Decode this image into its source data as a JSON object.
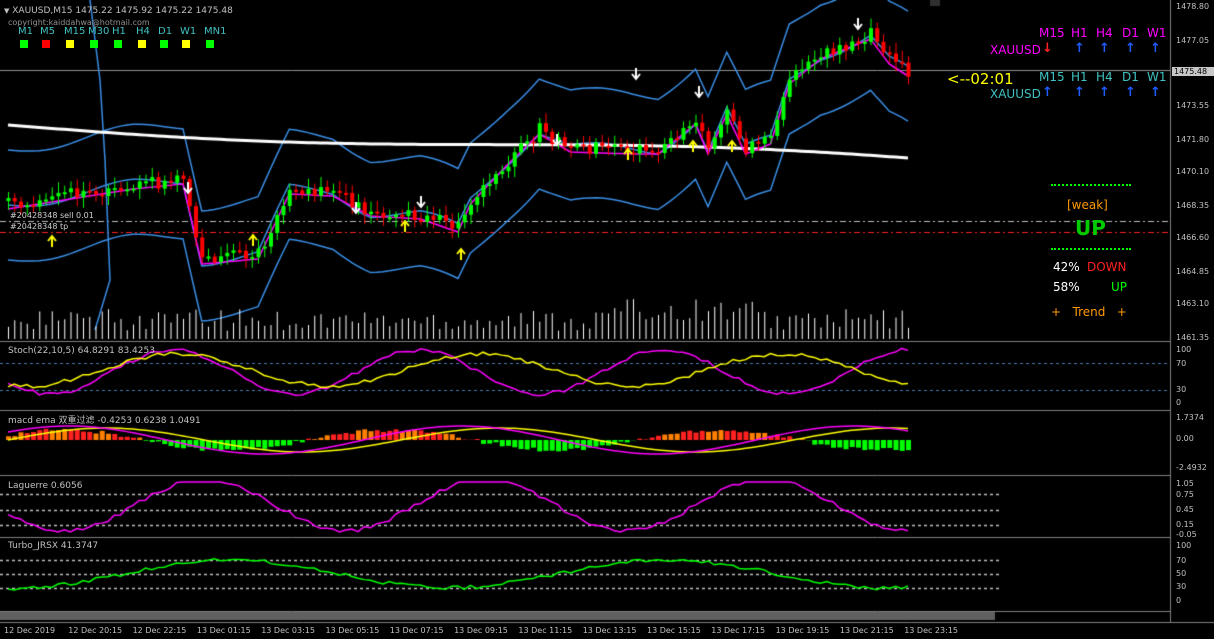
{
  "header": {
    "symbol_line": "XAUUSD,M15  1475.22 1475.92 1475.22 1475.48",
    "copyright": "copyright:kaiddahwa@hotmail.com",
    "timeframes": [
      {
        "label": "M1",
        "color": "#00ff00"
      },
      {
        "label": "M5",
        "color": "#ff0000"
      },
      {
        "label": "M15",
        "color": "#ffff00"
      },
      {
        "label": "M30",
        "color": "#00ff00"
      },
      {
        "label": "H1",
        "color": "#00ff00"
      },
      {
        "label": "H4",
        "color": "#ffff00"
      },
      {
        "label": "D1",
        "color": "#00ff00"
      },
      {
        "label": "W1",
        "color": "#ffff00"
      },
      {
        "label": "MN1",
        "color": "#00ff00"
      }
    ]
  },
  "panel": {
    "row1": {
      "symbol": "XAUUSD",
      "tfs": [
        "M15",
        "H1",
        "H4",
        "D1",
        "W1"
      ],
      "arrows": [
        "down",
        "up",
        "up",
        "up",
        "up"
      ],
      "arrow_colors": [
        "#ff2020",
        "#1e5cff",
        "#1e5cff",
        "#1e5cff",
        "#1e5cff"
      ],
      "color": "#ff00ff"
    },
    "timer": "<--02:01",
    "row2": {
      "symbol": "XAUUSD",
      "tfs": [
        "M15",
        "H1",
        "H4",
        "D1",
        "W1"
      ],
      "arrows": [
        "up",
        "up",
        "up",
        "up",
        "up"
      ],
      "arrow_colors": [
        "#1e5cff",
        "#1e5cff",
        "#1e5cff",
        "#1e5cff",
        "#1e5cff"
      ],
      "color": "#40c0c0"
    },
    "strength": "[weak]",
    "direction": "UP",
    "down_pct": "42%",
    "down_label": "DOWN",
    "up_pct": "58%",
    "up_label": "UP",
    "trend": "+   Trend   +"
  },
  "order_labels": {
    "sell": "#20428348 sell 0.01",
    "tp": "#20428348 tp"
  },
  "price_axis": [
    "1478.80",
    "1477.05",
    "1475.48",
    "1473.55",
    "1471.80",
    "1470.10",
    "1468.35",
    "1466.60",
    "1464.85",
    "1463.10",
    "1461.35"
  ],
  "subwindows": {
    "stoch": {
      "label": "Stoch(22,10,5) 64.8291 83.4253",
      "ticks": [
        "100",
        "70",
        "30",
        "0"
      ]
    },
    "macd": {
      "label": "macd ema 双重过滤 -0.4253 0.6238 1.0491",
      "ticks": [
        "1.7374",
        "0.00",
        "-2.4932"
      ]
    },
    "laguerre": {
      "label": "Laguerre 0.6056",
      "ticks": [
        "1.05",
        "0.75",
        "0.45",
        "0.15",
        "-0.05"
      ]
    },
    "turbo": {
      "label": "Turbo_JRSX 41.3747",
      "ticks": [
        "100",
        "70",
        "50",
        "30",
        "0"
      ]
    }
  },
  "time_axis": [
    "12 Dec 2019",
    "12 Dec 20:15",
    "12 Dec 22:15",
    "13 Dec 01:15",
    "13 Dec 03:15",
    "13 Dec 05:15",
    "13 Dec 07:15",
    "13 Dec 09:15",
    "13 Dec 11:15",
    "13 Dec 13:15",
    "13 Dec 15:15",
    "13 Dec 17:15",
    "13 Dec 19:15",
    "13 Dec 21:15",
    "13 Dec 23:15"
  ],
  "colors": {
    "bull_candle": "#00ff00",
    "bear_candle": "#ff0000",
    "bollinger": "#3a8ee6",
    "ma_slow": "#ffffff",
    "ma_fast": "#ff00ff",
    "price_line": "#c0c0c0",
    "stoch_main": "#ff00ff",
    "stoch_signal": "#ffff00",
    "laguerre": "#ff00ff",
    "turbo": "#00ff00"
  }
}
